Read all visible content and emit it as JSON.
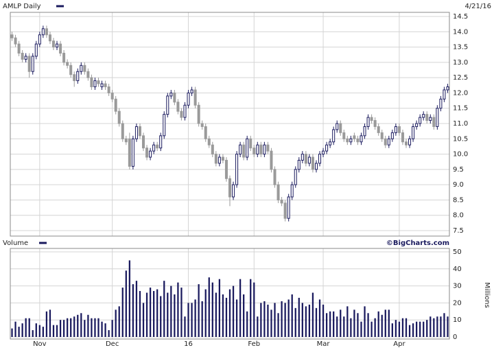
{
  "chart_data": [
    {
      "type": "candlestick",
      "title": "AMLP Daily",
      "subtitle": "4/21/16",
      "color": "#1a1a5e",
      "up_color": "#ffffff",
      "down_color": "#9a9a9a",
      "xlim": [
        -0.5,
        126.5
      ],
      "ylim": [
        7.5,
        14.5
      ],
      "yticks": [
        7.5,
        {
          "value": 8,
          "label": "8.0"
        },
        8.5,
        {
          "value": 9,
          "label": "9.0"
        },
        9.5,
        {
          "value": 10,
          "label": "10.0"
        },
        10.5,
        {
          "value": 11,
          "label": "11.0"
        },
        11.5,
        {
          "value": 12,
          "label": "12.0"
        },
        12.5,
        {
          "value": 13,
          "label": "13.0"
        },
        13.5,
        {
          "value": 14,
          "label": "14.0"
        },
        14.5
      ],
      "grid": true,
      "candles": [
        [
          13.9,
          14.0,
          13.7,
          13.8
        ],
        [
          13.8,
          13.9,
          13.5,
          13.6
        ],
        [
          13.6,
          13.7,
          13.2,
          13.3
        ],
        [
          13.3,
          13.4,
          13.0,
          13.1
        ],
        [
          13.1,
          13.3,
          13.0,
          13.2
        ],
        [
          13.2,
          13.3,
          12.5,
          12.7
        ],
        [
          12.7,
          13.3,
          12.6,
          13.2
        ],
        [
          13.2,
          13.7,
          13.1,
          13.6
        ],
        [
          13.6,
          14.0,
          13.5,
          13.9
        ],
        [
          13.9,
          14.2,
          13.8,
          14.1
        ],
        [
          14.1,
          14.2,
          13.8,
          13.9
        ],
        [
          13.9,
          14.0,
          13.6,
          13.7
        ],
        [
          13.7,
          13.8,
          13.4,
          13.5
        ],
        [
          13.5,
          13.7,
          13.4,
          13.6
        ],
        [
          13.6,
          13.7,
          13.2,
          13.3
        ],
        [
          13.3,
          13.4,
          12.9,
          13.0
        ],
        [
          13.0,
          13.1,
          12.8,
          12.9
        ],
        [
          12.9,
          13.0,
          12.5,
          12.6
        ],
        [
          12.6,
          12.7,
          12.2,
          12.4
        ],
        [
          12.4,
          12.8,
          12.3,
          12.7
        ],
        [
          12.7,
          13.0,
          12.6,
          12.9
        ],
        [
          12.9,
          13.0,
          12.6,
          12.7
        ],
        [
          12.7,
          12.8,
          12.4,
          12.5
        ],
        [
          12.5,
          12.6,
          12.1,
          12.2
        ],
        [
          12.2,
          12.5,
          12.1,
          12.4
        ],
        [
          12.4,
          12.5,
          12.2,
          12.3
        ],
        [
          12.2,
          12.4,
          12.1,
          12.3
        ],
        [
          12.3,
          12.4,
          12.1,
          12.2
        ],
        [
          12.2,
          12.3,
          11.9,
          12.0
        ],
        [
          12.0,
          12.1,
          11.7,
          11.8
        ],
        [
          11.8,
          11.9,
          11.3,
          11.4
        ],
        [
          11.4,
          11.5,
          10.9,
          11.0
        ],
        [
          11.0,
          11.1,
          10.4,
          10.5
        ],
        [
          10.5,
          10.6,
          10.3,
          10.4
        ],
        [
          10.5,
          10.7,
          9.5,
          9.6
        ],
        [
          9.6,
          10.6,
          9.5,
          10.5
        ],
        [
          10.5,
          11.0,
          10.4,
          10.9
        ],
        [
          10.9,
          11.0,
          10.5,
          10.6
        ],
        [
          10.6,
          10.7,
          10.1,
          10.2
        ],
        [
          10.2,
          10.3,
          9.8,
          9.9
        ],
        [
          9.9,
          10.2,
          9.8,
          10.1
        ],
        [
          10.1,
          10.4,
          10.0,
          10.3
        ],
        [
          10.3,
          10.4,
          10.1,
          10.2
        ],
        [
          10.2,
          10.7,
          10.1,
          10.6
        ],
        [
          10.6,
          11.4,
          10.5,
          11.3
        ],
        [
          11.3,
          12.0,
          11.2,
          11.9
        ],
        [
          11.9,
          12.1,
          11.8,
          12.0
        ],
        [
          12.0,
          12.1,
          11.6,
          11.7
        ],
        [
          11.7,
          11.8,
          11.3,
          11.4
        ],
        [
          11.4,
          11.5,
          11.1,
          11.2
        ],
        [
          11.2,
          11.7,
          11.1,
          11.6
        ],
        [
          11.6,
          12.1,
          11.5,
          12.0
        ],
        [
          12.0,
          12.2,
          11.9,
          12.1
        ],
        [
          12.1,
          12.2,
          11.5,
          11.6
        ],
        [
          11.6,
          11.7,
          10.9,
          11.0
        ],
        [
          11.0,
          11.1,
          10.8,
          10.9
        ],
        [
          10.9,
          11.0,
          10.4,
          10.5
        ],
        [
          10.5,
          10.6,
          10.2,
          10.3
        ],
        [
          10.3,
          10.4,
          9.9,
          10.0
        ],
        [
          10.0,
          10.1,
          9.6,
          9.7
        ],
        [
          9.7,
          10.0,
          9.6,
          9.9
        ],
        [
          9.9,
          10.0,
          9.7,
          9.8
        ],
        [
          9.8,
          9.9,
          9.1,
          9.2
        ],
        [
          9.2,
          9.3,
          8.3,
          8.6
        ],
        [
          8.6,
          9.1,
          8.5,
          9.0
        ],
        [
          9.0,
          10.1,
          8.9,
          10.0
        ],
        [
          10.0,
          10.4,
          9.9,
          10.3
        ],
        [
          10.3,
          10.4,
          9.8,
          9.9
        ],
        [
          9.9,
          10.6,
          9.8,
          10.5
        ],
        [
          10.5,
          10.6,
          10.1,
          10.2
        ],
        [
          10.2,
          10.3,
          9.9,
          10.0
        ],
        [
          10.0,
          10.4,
          9.9,
          10.3
        ],
        [
          10.3,
          10.4,
          9.9,
          10.0
        ],
        [
          10.0,
          10.4,
          9.9,
          10.3
        ],
        [
          10.3,
          10.4,
          10.0,
          10.1
        ],
        [
          10.1,
          10.2,
          9.4,
          9.5
        ],
        [
          9.5,
          9.6,
          8.9,
          9.0
        ],
        [
          9.0,
          9.1,
          8.4,
          8.5
        ],
        [
          8.5,
          8.6,
          8.3,
          8.4
        ],
        [
          8.4,
          8.5,
          7.8,
          7.9
        ],
        [
          7.9,
          8.7,
          7.8,
          8.6
        ],
        [
          8.6,
          9.1,
          8.5,
          9.0
        ],
        [
          9.0,
          9.6,
          8.9,
          9.5
        ],
        [
          9.5,
          9.9,
          9.4,
          9.8
        ],
        [
          9.8,
          10.1,
          9.7,
          10.0
        ],
        [
          10.0,
          10.1,
          9.6,
          9.7
        ],
        [
          9.7,
          10.0,
          9.6,
          9.9
        ],
        [
          9.9,
          10.0,
          9.4,
          9.5
        ],
        [
          9.5,
          9.8,
          9.4,
          9.7
        ],
        [
          9.7,
          10.1,
          9.6,
          10.0
        ],
        [
          10.0,
          10.2,
          9.9,
          10.1
        ],
        [
          10.1,
          10.4,
          10.0,
          10.3
        ],
        [
          10.3,
          10.5,
          10.2,
          10.4
        ],
        [
          10.4,
          10.9,
          10.3,
          10.8
        ],
        [
          10.8,
          11.1,
          10.7,
          11.0
        ],
        [
          11.0,
          11.1,
          10.6,
          10.7
        ],
        [
          10.7,
          10.8,
          10.4,
          10.5
        ],
        [
          10.5,
          10.6,
          10.3,
          10.4
        ],
        [
          10.4,
          10.6,
          10.3,
          10.5
        ],
        [
          10.6,
          10.7,
          10.4,
          10.5
        ],
        [
          10.5,
          10.6,
          10.3,
          10.4
        ],
        [
          10.4,
          10.7,
          10.3,
          10.6
        ],
        [
          10.6,
          11.0,
          10.5,
          10.9
        ],
        [
          10.9,
          11.3,
          10.8,
          11.2
        ],
        [
          11.2,
          11.3,
          11.0,
          11.1
        ],
        [
          11.1,
          11.2,
          10.8,
          10.9
        ],
        [
          10.9,
          11.0,
          10.6,
          10.7
        ],
        [
          10.7,
          10.8,
          10.4,
          10.5
        ],
        [
          10.5,
          10.6,
          10.2,
          10.3
        ],
        [
          10.3,
          10.6,
          10.2,
          10.5
        ],
        [
          10.5,
          10.8,
          10.4,
          10.7
        ],
        [
          10.7,
          11.0,
          10.6,
          10.9
        ],
        [
          10.9,
          11.0,
          10.6,
          10.7
        ],
        [
          10.7,
          10.8,
          10.3,
          10.4
        ],
        [
          10.4,
          10.5,
          10.2,
          10.3
        ],
        [
          10.3,
          10.6,
          10.2,
          10.5
        ],
        [
          10.5,
          11.0,
          10.4,
          10.9
        ],
        [
          10.9,
          11.1,
          10.8,
          11.0
        ],
        [
          11.0,
          11.3,
          10.9,
          11.2
        ],
        [
          11.2,
          11.4,
          11.1,
          11.3
        ],
        [
          11.3,
          11.4,
          11.0,
          11.1
        ],
        [
          11.1,
          11.3,
          11.0,
          11.2
        ],
        [
          11.2,
          11.3,
          10.8,
          10.9
        ],
        [
          10.9,
          11.6,
          10.8,
          11.5
        ],
        [
          11.5,
          11.9,
          11.4,
          11.8
        ],
        [
          11.8,
          12.2,
          11.7,
          12.1
        ],
        [
          12.1,
          12.3,
          12.0,
          12.2
        ]
      ]
    },
    {
      "type": "bar",
      "title": "Volume",
      "source": "©BigCharts.com",
      "ylabel": "Millions",
      "color": "#1a1a5e",
      "xlim": [
        -0.5,
        126.5
      ],
      "ylim": [
        0,
        50
      ],
      "yticks": [
        0,
        10,
        20,
        30,
        40,
        50
      ],
      "grid": true,
      "xticks": [
        {
          "value": 8,
          "label": "Nov"
        },
        {
          "value": 29,
          "label": "Dec"
        },
        {
          "value": 51,
          "label": "16"
        },
        {
          "value": 70,
          "label": "Feb"
        },
        {
          "value": 90,
          "label": "Mar"
        },
        {
          "value": 112,
          "label": "Apr"
        }
      ],
      "values": [
        5,
        9,
        6,
        8,
        11,
        11,
        4,
        8,
        7,
        6,
        15,
        16,
        7,
        7,
        10,
        10,
        11,
        11,
        12,
        13,
        14,
        10,
        13,
        11,
        11,
        11,
        9,
        8,
        4,
        10,
        16,
        18,
        29,
        39,
        45,
        31,
        33,
        27,
        20,
        26,
        29,
        27,
        28,
        24,
        33,
        26,
        30,
        25,
        32,
        29,
        12,
        20,
        20,
        22,
        31,
        21,
        28,
        35,
        32,
        26,
        34,
        25,
        23,
        28,
        30,
        22,
        34,
        25,
        15,
        34,
        32,
        12,
        20,
        21,
        19,
        16,
        20,
        14,
        21,
        20,
        22,
        25,
        17,
        23,
        20,
        18,
        19,
        26,
        17,
        22,
        19,
        14,
        15,
        15,
        12,
        16,
        12,
        18,
        11,
        16,
        14,
        9,
        18,
        14,
        9,
        11,
        15,
        13,
        16,
        16,
        8,
        10,
        9,
        11,
        11,
        7,
        8,
        9,
        9,
        9,
        10,
        12,
        11,
        12,
        12,
        14,
        12
      ]
    }
  ]
}
